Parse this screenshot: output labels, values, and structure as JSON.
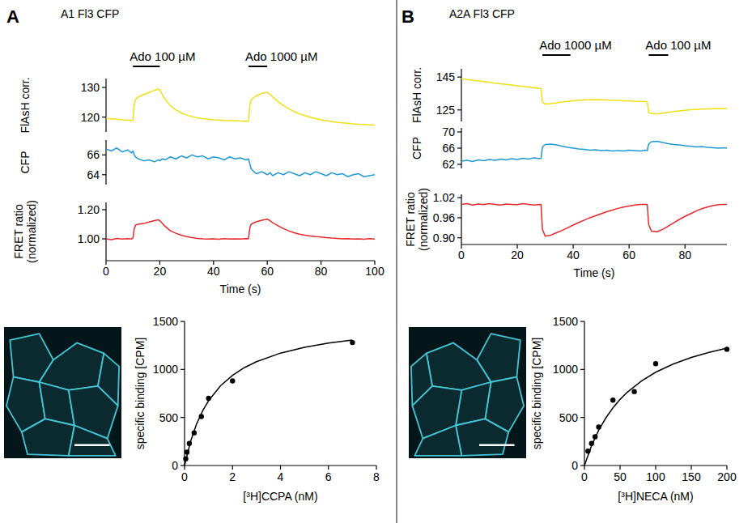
{
  "chart_data": [
    {
      "type": "line",
      "panel_label": "A",
      "title": "A1 Fl3 CFP",
      "ylabel": "FlAsH corr.",
      "color": "#f0df12",
      "x": [
        0,
        2,
        4,
        6,
        8,
        9.5,
        10,
        10.5,
        11,
        12,
        14,
        16,
        18,
        19.5,
        20,
        21,
        22,
        24,
        26,
        28,
        30,
        32,
        34,
        36,
        38,
        40,
        42,
        44,
        46,
        48,
        50,
        52,
        53,
        53.5,
        54,
        55,
        56,
        58,
        60,
        61,
        62,
        64,
        66,
        68,
        70,
        72,
        74,
        76,
        78,
        80,
        82,
        84,
        86,
        88,
        90,
        92,
        94,
        96,
        98,
        100
      ],
      "values": [
        119.6,
        119.4,
        119.3,
        119.1,
        119.0,
        118.9,
        119.0,
        124.5,
        126.0,
        126.8,
        127.6,
        128.3,
        129.0,
        129.4,
        129.2,
        127.5,
        126.0,
        123.8,
        122.4,
        121.4,
        120.7,
        120.2,
        119.8,
        119.5,
        119.3,
        119.1,
        119.0,
        118.9,
        118.8,
        118.8,
        118.7,
        118.6,
        118.6,
        124.0,
        125.8,
        126.6,
        127.2,
        128.0,
        128.4,
        127.6,
        126.8,
        125.2,
        123.9,
        122.8,
        121.9,
        121.1,
        120.5,
        120.0,
        119.5,
        119.1,
        118.8,
        118.5,
        118.3,
        118.1,
        117.9,
        117.7,
        117.6,
        117.5,
        117.4,
        117.3
      ],
      "xlim": [
        0,
        100
      ],
      "ylim": [
        115,
        133
      ],
      "yticks": [
        120,
        130
      ],
      "tick_labels": "y",
      "annotations": [
        {
          "text": "Ado 100 µM",
          "x": [
            10,
            20
          ]
        },
        {
          "text": "Ado 1000 µM",
          "x": [
            53,
            60
          ]
        }
      ]
    },
    {
      "type": "line",
      "ylabel": "CFP",
      "color": "#1f9ad6",
      "x": [
        0,
        2,
        4,
        6,
        8,
        9.5,
        10,
        10.5,
        11,
        12,
        14,
        16,
        18,
        19.5,
        20,
        21,
        22,
        24,
        26,
        28,
        30,
        32,
        34,
        36,
        38,
        40,
        42,
        44,
        46,
        48,
        50,
        52,
        53,
        53.5,
        54,
        55,
        56,
        58,
        60,
        61,
        62,
        64,
        66,
        68,
        70,
        72,
        74,
        76,
        78,
        80,
        82,
        84,
        86,
        88,
        90,
        92,
        94,
        96,
        98,
        100
      ],
      "values": [
        66.6,
        66.4,
        66.7,
        66.3,
        66.5,
        66.2,
        66.4,
        66.0,
        65.8,
        65.6,
        65.4,
        65.5,
        65.3,
        65.5,
        65.4,
        65.6,
        65.5,
        65.8,
        65.6,
        65.9,
        65.7,
        66.0,
        65.8,
        65.9,
        65.6,
        65.8,
        65.7,
        65.5,
        65.8,
        65.6,
        65.7,
        65.5,
        65.6,
        65.1,
        64.6,
        64.3,
        64.1,
        64.3,
        64.0,
        64.2,
        63.9,
        64.2,
        64.0,
        64.3,
        64.1,
        63.9,
        64.2,
        64.0,
        64.3,
        64.1,
        63.9,
        64.2,
        64.0,
        64.1,
        63.8,
        64.0,
        64.1,
        63.8,
        63.9,
        64.0
      ],
      "xlim": [
        0,
        100
      ],
      "ylim": [
        63,
        67.5
      ],
      "yticks": [
        64,
        66
      ],
      "tick_labels": "y"
    },
    {
      "type": "line",
      "ylabel": "FRET ratio (normalized)",
      "xlabel": "Time (s)",
      "color": "#e8282b",
      "x": [
        0,
        2,
        4,
        6,
        8,
        9.5,
        10,
        10.5,
        11,
        12,
        14,
        16,
        18,
        19.5,
        20,
        21,
        22,
        24,
        26,
        28,
        30,
        32,
        34,
        36,
        38,
        40,
        42,
        44,
        46,
        48,
        50,
        52,
        53,
        53.5,
        54,
        55,
        56,
        58,
        60,
        61,
        62,
        64,
        66,
        68,
        70,
        72,
        74,
        76,
        78,
        80,
        82,
        84,
        86,
        88,
        90,
        92,
        94,
        96,
        98,
        100
      ],
      "values": [
        1.0,
        0.995,
        1.003,
        0.998,
        1.002,
        0.999,
        1.005,
        1.07,
        1.095,
        1.1,
        1.105,
        1.115,
        1.125,
        1.13,
        1.125,
        1.105,
        1.085,
        1.055,
        1.038,
        1.025,
        1.015,
        1.008,
        1.003,
        1.0,
        0.998,
        1.0,
        0.997,
        1.002,
        0.998,
        1.0,
        0.999,
        1.001,
        1.0,
        1.075,
        1.1,
        1.11,
        1.118,
        1.128,
        1.135,
        1.125,
        1.11,
        1.09,
        1.07,
        1.055,
        1.042,
        1.032,
        1.025,
        1.02,
        1.015,
        1.012,
        1.008,
        1.005,
        1.003,
        1.0,
        1.002,
        0.998,
        1.0,
        0.997,
        1.001,
        0.999
      ],
      "xlim": [
        0,
        100
      ],
      "ylim": [
        0.85,
        1.25
      ],
      "xticks": [
        0,
        20,
        40,
        60,
        80,
        100
      ],
      "yticks": [
        {
          "value": 1,
          "label": "1.00"
        },
        {
          "value": 1.2,
          "label": "1.20"
        }
      ]
    },
    {
      "type": "line",
      "panel_label": "B",
      "title": "A2A Fl3 CFP",
      "ylabel": "FlAsH corr.",
      "color": "#f0df12",
      "x": [
        0,
        2,
        4,
        6,
        8,
        10,
        12,
        14,
        16,
        18,
        20,
        22,
        24,
        26,
        28,
        28.5,
        29,
        30,
        32,
        34,
        36,
        38,
        40,
        42,
        44,
        46,
        48,
        50,
        52,
        54,
        56,
        58,
        60,
        62,
        64,
        66,
        66.5,
        67,
        68,
        70,
        72,
        74,
        76,
        78,
        80,
        82,
        84,
        86,
        88,
        90,
        92,
        94,
        95
      ],
      "values": [
        144.0,
        143.5,
        143.1,
        142.6,
        142.2,
        141.8,
        141.3,
        140.9,
        140.5,
        140.1,
        139.7,
        139.3,
        138.9,
        138.5,
        138.1,
        138.0,
        129.5,
        128.6,
        128.8,
        129.3,
        129.8,
        130.2,
        130.6,
        130.9,
        131.1,
        131.2,
        131.3,
        131.2,
        131.1,
        130.9,
        130.8,
        130.6,
        130.5,
        130.3,
        130.2,
        130.1,
        130.0,
        123.5,
        122.8,
        122.6,
        123.0,
        123.5,
        124.0,
        124.4,
        124.8,
        125.1,
        125.3,
        125.5,
        125.6,
        125.7,
        125.8,
        125.8,
        125.8
      ],
      "xlim": [
        0,
        95
      ],
      "ylim": [
        118,
        150
      ],
      "yticks": [
        125,
        145
      ],
      "tick_labels": "y",
      "annotations": [
        {
          "text": "Ado 1000 µM",
          "x": [
            29,
            39
          ]
        },
        {
          "text": "Ado 100 µM",
          "x": [
            67,
            74
          ]
        }
      ]
    },
    {
      "type": "line",
      "ylabel": "CFP",
      "color": "#1f9ad6",
      "x": [
        0,
        2,
        4,
        6,
        8,
        10,
        12,
        14,
        16,
        18,
        20,
        22,
        24,
        26,
        28,
        28.5,
        29,
        30,
        32,
        34,
        36,
        38,
        40,
        42,
        44,
        46,
        48,
        50,
        52,
        54,
        56,
        58,
        60,
        62,
        64,
        66,
        66.5,
        67,
        68,
        70,
        72,
        74,
        76,
        78,
        80,
        82,
        84,
        86,
        88,
        90,
        92,
        94,
        95
      ],
      "values": [
        62.8,
        63.0,
        62.7,
        63.1,
        62.9,
        63.2,
        63.0,
        63.3,
        63.1,
        63.4,
        63.2,
        63.5,
        63.3,
        63.6,
        63.4,
        63.5,
        66.3,
        66.9,
        67.0,
        66.8,
        66.5,
        66.2,
        66.0,
        65.8,
        65.7,
        65.5,
        65.6,
        65.4,
        65.5,
        65.3,
        65.4,
        65.3,
        65.5,
        65.4,
        65.3,
        65.5,
        65.4,
        67.0,
        67.6,
        67.7,
        67.4,
        67.1,
        66.9,
        66.8,
        66.6,
        66.5,
        66.3,
        66.4,
        66.2,
        66.1,
        66.0,
        66.1,
        66.0
      ],
      "xlim": [
        0,
        95
      ],
      "ylim": [
        61,
        71
      ],
      "yticks": [
        62,
        66,
        70
      ],
      "tick_labels": "y"
    },
    {
      "type": "line",
      "ylabel": "FRET ratio (normalized)",
      "xlabel": "Time (s)",
      "color": "#e8282b",
      "x": [
        0,
        2,
        4,
        6,
        8,
        10,
        12,
        14,
        16,
        18,
        20,
        22,
        24,
        26,
        28,
        28.5,
        29,
        30,
        32,
        34,
        36,
        38,
        40,
        42,
        44,
        46,
        48,
        50,
        52,
        54,
        56,
        58,
        60,
        62,
        64,
        66,
        66.5,
        67,
        68,
        70,
        72,
        74,
        76,
        78,
        80,
        82,
        84,
        86,
        88,
        90,
        92,
        94,
        95
      ],
      "values": [
        1.0,
        1.002,
        0.998,
        1.001,
        0.999,
        1.002,
        1.0,
        0.998,
        1.001,
        1.0,
        0.999,
        1.002,
        1.0,
        0.998,
        1.0,
        0.999,
        0.925,
        0.905,
        0.908,
        0.915,
        0.922,
        0.93,
        0.938,
        0.946,
        0.953,
        0.96,
        0.966,
        0.972,
        0.978,
        0.983,
        0.988,
        0.992,
        0.995,
        0.998,
        1.0,
        1.0,
        0.999,
        0.94,
        0.92,
        0.918,
        0.925,
        0.935,
        0.945,
        0.955,
        0.964,
        0.972,
        0.98,
        0.987,
        0.992,
        0.996,
        0.999,
        1.0,
        1.0
      ],
      "xlim": [
        0,
        95
      ],
      "ylim": [
        0.88,
        1.03
      ],
      "xticks": [
        0,
        20,
        40,
        60,
        80
      ],
      "yticks": [
        {
          "value": 0.9,
          "label": "0.90"
        },
        0.96,
        1.02
      ]
    },
    {
      "type": "scatter",
      "xlabel": "[³H]CCPA (nM)",
      "ylabel": "specific binding [CPM]",
      "xlim": [
        0,
        8
      ],
      "ylim": [
        0,
        1500
      ],
      "xticks": [
        0,
        2,
        4,
        6,
        8
      ],
      "yticks": [
        0,
        500,
        1000,
        1500
      ],
      "series": [
        {
          "type": "scatter",
          "marker": "circle",
          "color": "#000000",
          "x": [
            0.05,
            0.1,
            0.2,
            0.4,
            0.7,
            1,
            2,
            7
          ],
          "values": [
            70,
            140,
            230,
            340,
            510,
            700,
            880,
            1280
          ]
        },
        {
          "type": "line",
          "line_style": "solid",
          "color": "#000000",
          "x": [
            0,
            0.25,
            0.5,
            0.75,
            1,
            1.5,
            2,
            2.5,
            3,
            4,
            5,
            6,
            7
          ],
          "values": [
            0,
            250,
            431,
            567,
            674,
            830,
            939,
            1020,
            1081,
            1170,
            1230,
            1274,
            1307
          ]
        }
      ]
    },
    {
      "type": "scatter",
      "xlabel": "[³H]NECA (nM)",
      "ylabel": "specific binding [CPM]",
      "xlim": [
        0,
        200
      ],
      "ylim": [
        0,
        1500
      ],
      "xticks": [
        0,
        50,
        100,
        150,
        200
      ],
      "yticks": [
        0,
        500,
        1000,
        1500
      ],
      "series": [
        {
          "type": "scatter",
          "marker": "circle",
          "color": "#000000",
          "x": [
            5,
            10,
            15,
            20,
            40,
            70,
            100,
            200
          ],
          "values": [
            150,
            230,
            300,
            400,
            680,
            770,
            1060,
            1210
          ]
        },
        {
          "type": "line",
          "line_style": "solid",
          "color": "#000000",
          "x": [
            0,
            10,
            20,
            30,
            40,
            50,
            60,
            80,
            100,
            125,
            150,
            175,
            200
          ],
          "values": [
            0,
            206,
            367,
            495,
            600,
            688,
            762,
            880,
            971,
            1058,
            1125,
            1178,
            1222
          ]
        }
      ]
    }
  ]
}
